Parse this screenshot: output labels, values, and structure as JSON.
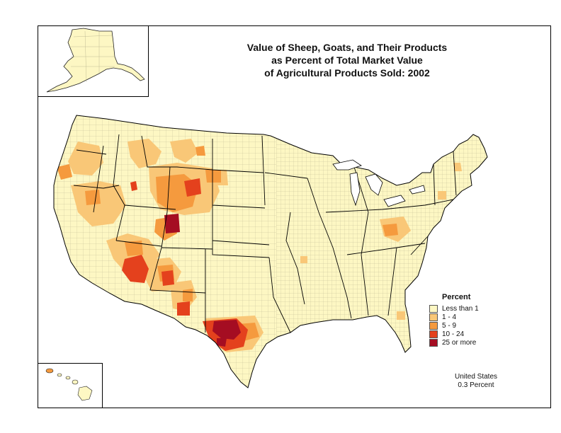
{
  "title": {
    "line1": "Value of Sheep, Goats, and Their Products",
    "line2": "as Percent of Total Market Value",
    "line3": "of Agricultural Products Sold:  2002"
  },
  "legend": {
    "title": "Percent",
    "items": [
      {
        "label": "Less than 1",
        "color": "#fdf7c3"
      },
      {
        "label": "1 - 4",
        "color": "#f9c777"
      },
      {
        "label": "5 - 9",
        "color": "#f59a3e"
      },
      {
        "label": "10 - 24",
        "color": "#e4411d"
      },
      {
        "label": "25 or more",
        "color": "#a50d22"
      }
    ]
  },
  "summary": {
    "line1": "United States",
    "line2": "0.3 Percent"
  },
  "colors": {
    "base": "#fdf7c3",
    "border": "#000000",
    "county_lines": "#9a9a7a"
  }
}
